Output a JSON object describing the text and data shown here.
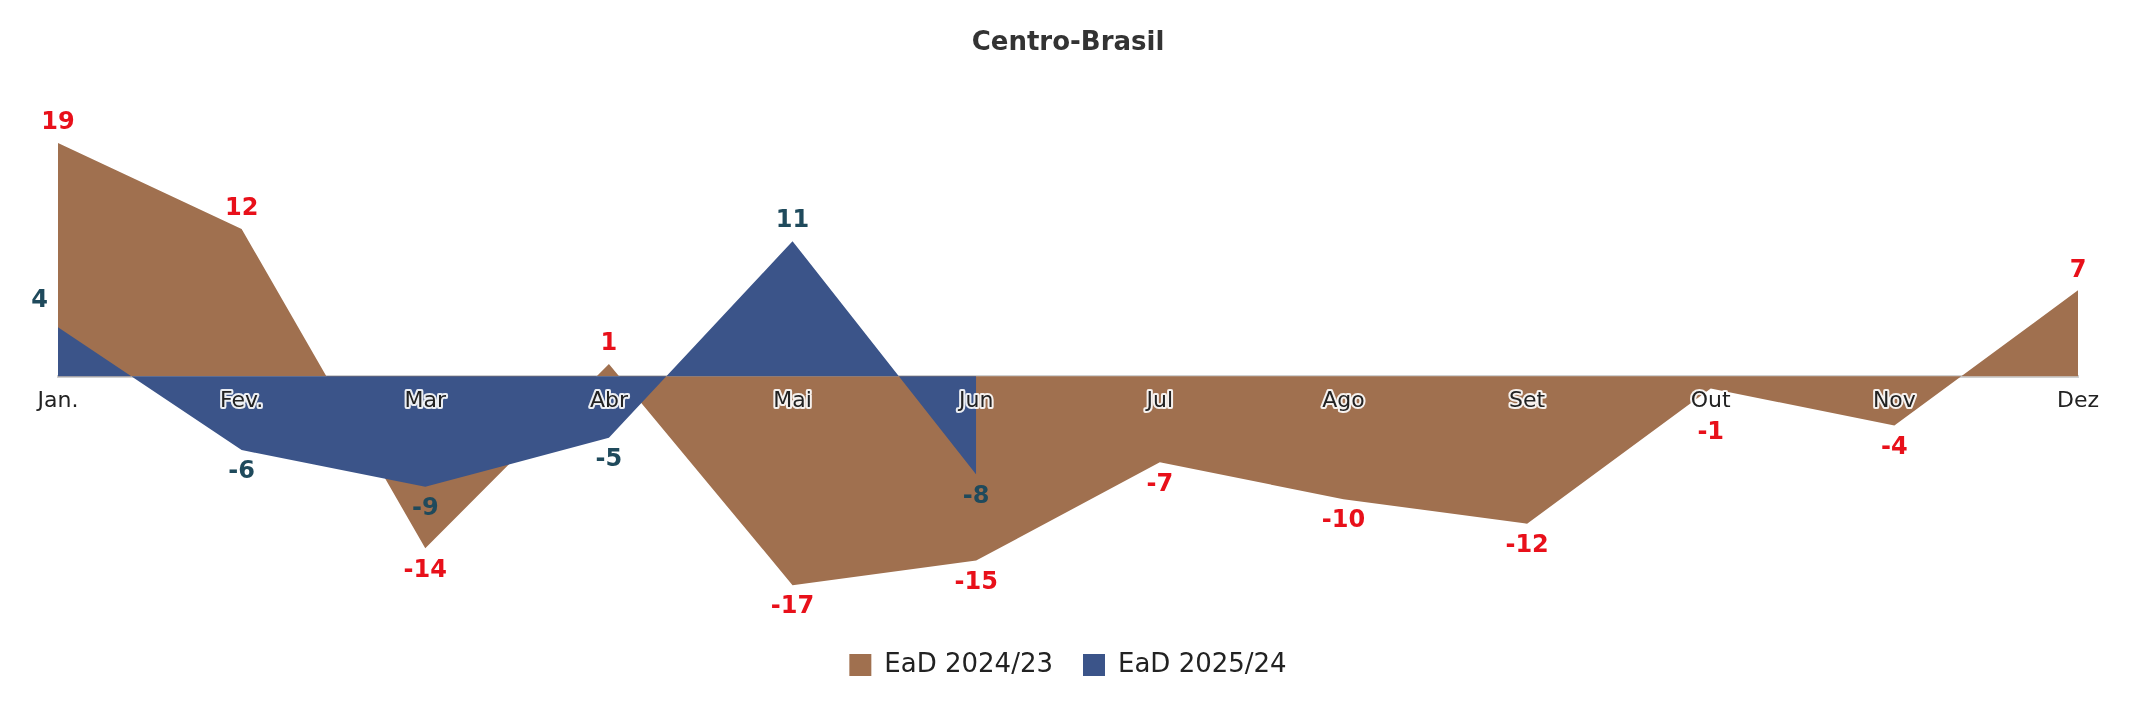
{
  "chart_data": {
    "type": "area",
    "title": "Centro-Brasil",
    "categories": [
      "Jan.",
      "Fev.",
      "Mar",
      "Abr",
      "Mai",
      "Jun",
      "Jul",
      "Ago",
      "Set",
      "Out",
      "Nov",
      "Dez"
    ],
    "series": [
      {
        "name": "EaD 2024/23",
        "color": "#a0704f",
        "values": [
          19,
          12,
          -14,
          1,
          -17,
          -15,
          -7,
          -10,
          -12,
          -1,
          -4,
          7
        ]
      },
      {
        "name": "EaD 2025/24",
        "color": "#3b5489",
        "values": [
          4,
          -6,
          -9,
          -5,
          11,
          -8,
          null,
          null,
          null,
          null,
          null,
          null
        ]
      }
    ],
    "data_labels": true,
    "legend": "bottom",
    "grid": false
  }
}
